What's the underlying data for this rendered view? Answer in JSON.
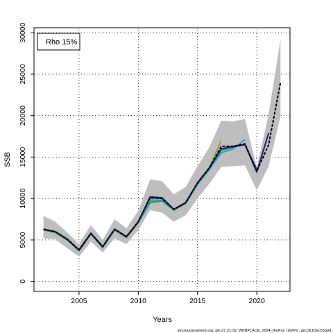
{
  "chart_data": {
    "type": "line",
    "legend": {
      "label": "Rho 15%",
      "position": "top-left"
    },
    "xlabel": "Years",
    "ylabel": "SSB",
    "xlim": [
      2001.2,
      2022.8
    ],
    "ylim": [
      -1200,
      30600
    ],
    "x_ticks": [
      2005,
      2010,
      2015,
      2020
    ],
    "y_ticks": [
      0,
      5000,
      10000,
      15000,
      20000,
      25000,
      30000
    ],
    "grid": true,
    "footer": "stockassessment.org, ple.27.21-32_WKBPLACE_2024_BioPar, r18476 , git:c9c81ec53a0d",
    "confidence_band": {
      "color": "#bebebe",
      "x": [
        2002,
        2003,
        2004,
        2005,
        2006,
        2007,
        2008,
        2009,
        2010,
        2011,
        2012,
        2013,
        2014,
        2015,
        2016,
        2017,
        2018,
        2019,
        2020,
        2021,
        2022
      ],
      "upper": [
        7900,
        7200,
        5900,
        4500,
        6800,
        5000,
        7500,
        6400,
        8500,
        12300,
        12100,
        10500,
        11400,
        13900,
        16200,
        19400,
        19300,
        19600,
        13700,
        20200,
        29200
      ],
      "lower": [
        5200,
        5100,
        4000,
        3000,
        4800,
        3500,
        5200,
        4500,
        6200,
        8600,
        8300,
        7200,
        8000,
        10000,
        11800,
        13800,
        13900,
        14000,
        11000,
        13900,
        19900
      ]
    },
    "series": [
      {
        "color": "#000000",
        "dashed": true,
        "x": [
          2002,
          2003,
          2004,
          2005,
          2006,
          2007,
          2008,
          2009,
          2010,
          2011,
          2012,
          2013,
          2014,
          2015,
          2016,
          2017,
          2018,
          2019,
          2020,
          2021,
          2022
        ],
        "values": [
          6300,
          6000,
          5100,
          3800,
          5800,
          4200,
          6300,
          5400,
          7200,
          10100,
          10000,
          8700,
          9500,
          11900,
          13700,
          16300,
          16300,
          16600,
          13300,
          16500,
          24000
        ]
      },
      {
        "color": "#1f1f7a",
        "x": [
          2002,
          2003,
          2004,
          2005,
          2006,
          2007,
          2008,
          2009,
          2010,
          2011,
          2012,
          2013,
          2014,
          2015,
          2016,
          2017,
          2018,
          2019,
          2020,
          2021
        ],
        "values": [
          6300,
          6000,
          5100,
          3800,
          5800,
          4200,
          6300,
          5400,
          7200,
          10200,
          10100,
          8700,
          9500,
          11900,
          13700,
          16000,
          16300,
          16500,
          13200,
          17900
        ]
      },
      {
        "color": "#2a4fa0",
        "x": [
          2002,
          2003,
          2004,
          2005,
          2006,
          2007,
          2008,
          2009,
          2010,
          2011,
          2012,
          2013,
          2014,
          2015,
          2016,
          2017,
          2018,
          2019,
          2020
        ],
        "values": [
          6300,
          6000,
          5100,
          3800,
          5800,
          4200,
          6300,
          5400,
          7200,
          10100,
          10000,
          8700,
          9500,
          11900,
          13700,
          16000,
          16200,
          16500,
          13500
        ]
      },
      {
        "color": "#22a6c6",
        "x": [
          2002,
          2003,
          2004,
          2005,
          2006,
          2007,
          2008,
          2009,
          2010,
          2011,
          2012,
          2013,
          2014,
          2015,
          2016,
          2017,
          2018,
          2019
        ],
        "values": [
          6300,
          6000,
          5100,
          3800,
          5800,
          4200,
          6300,
          5400,
          7200,
          9800,
          9800,
          8700,
          9500,
          11800,
          13500,
          15500,
          16000,
          17100
        ]
      },
      {
        "color": "#2e9e54",
        "x": [
          2002,
          2003,
          2004,
          2005,
          2006,
          2007,
          2008,
          2009,
          2010,
          2011,
          2012,
          2013,
          2014,
          2015,
          2016,
          2017,
          2018
        ],
        "values": [
          6200,
          5900,
          5000,
          3700,
          5700,
          4100,
          6200,
          5300,
          7100,
          9500,
          9700,
          8600,
          9400,
          11700,
          13500,
          15800,
          16200
        ]
      },
      {
        "color": "#9aa030",
        "x": [
          2002,
          2003,
          2004,
          2005,
          2006,
          2007,
          2008,
          2009,
          2010,
          2011,
          2012,
          2013,
          2014,
          2015,
          2016,
          2017
        ],
        "values": [
          6300,
          6000,
          5100,
          3800,
          5800,
          4200,
          6300,
          5400,
          7200,
          9600,
          9800,
          8700,
          9500,
          11900,
          13800,
          17000
        ]
      }
    ]
  }
}
